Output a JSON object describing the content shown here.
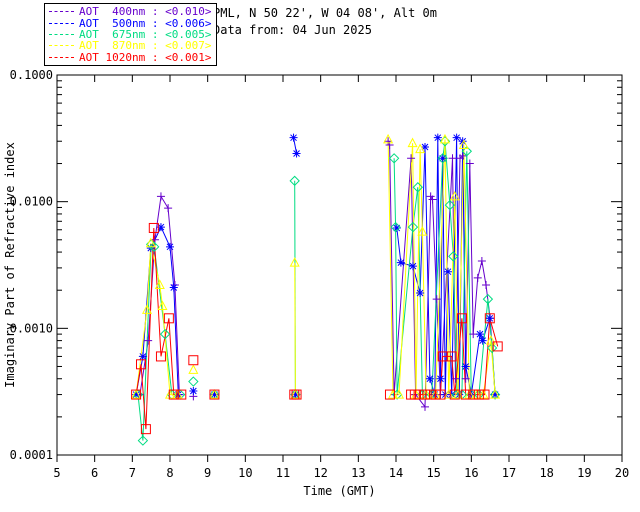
{
  "header": {
    "site_line": "PML, N 50 22', W 04 08', Alt 0m",
    "date_line": "Data from: 04 Jun 2025"
  },
  "legend": {
    "entries": [
      {
        "label": "AOT  400nm : <0.010>",
        "color": "#6600CC"
      },
      {
        "label": "AOT  500nm : <0.006>",
        "color": "#0000FF"
      },
      {
        "label": "AOT  675nm : <0.005>",
        "color": "#00DC82"
      },
      {
        "label": "AOT  870nm : <0.007>",
        "color": "#FFFF00"
      },
      {
        "label": "AOT 1020nm : <0.001>",
        "color": "#FF0000"
      }
    ]
  },
  "chart_data": {
    "type": "line",
    "title": "",
    "xlabel": "Time (GMT)",
    "ylabel": "Imaginary Part of Refractive index",
    "x_scale": "linear",
    "y_scale": "log",
    "xlim": [
      5,
      20
    ],
    "ylim": [
      0.0001,
      0.1
    ],
    "grid": false,
    "legend_position": "top-left-outside",
    "x_ticks": [
      5,
      6,
      7,
      8,
      9,
      10,
      11,
      12,
      13,
      14,
      15,
      16,
      17,
      18,
      19,
      20
    ],
    "y_ticks": [
      {
        "value": 0.1,
        "label": "0.1000"
      },
      {
        "value": 0.01,
        "label": "0.0100"
      },
      {
        "value": 0.001,
        "label": "0.0010"
      },
      {
        "value": 0.0001,
        "label": "0.0001"
      }
    ],
    "axis_color": "#000000",
    "background_color": "#FFFFFF",
    "series": [
      {
        "name": "AOT 400nm",
        "wavelength_nm": 400,
        "marker": "plus",
        "color": "#6600CC",
        "segments": [
          [
            [
              7.2,
              0.0003
            ],
            [
              7.42,
              0.0008
            ],
            [
              7.6,
              0.005
            ],
            [
              7.76,
              0.011
            ],
            [
              7.95,
              0.0089
            ],
            [
              8.13,
              0.0022
            ],
            [
              8.25,
              0.0003
            ]
          ],
          [
            [
              8.62,
              0.00029
            ]
          ],
          [
            [
              9.18,
              0.0003
            ]
          ],
          [
            [
              11.32,
              0.0003
            ]
          ],
          [
            [
              13.79,
              0.03
            ],
            [
              13.83,
              0.028
            ],
            [
              13.95,
              0.0003
            ],
            [
              14.4,
              0.022
            ],
            [
              14.52,
              0.0003
            ],
            [
              14.77,
              0.00024
            ],
            [
              14.92,
              0.011
            ],
            [
              14.97,
              0.0104
            ],
            [
              15.08,
              0.0017
            ],
            [
              15.18,
              0.0003
            ],
            [
              15.5,
              0.022
            ],
            [
              15.58,
              0.0004
            ],
            [
              15.7,
              0.022
            ],
            [
              15.78,
              0.023
            ],
            [
              15.85,
              0.0004
            ],
            [
              15.96,
              0.02
            ],
            [
              16.05,
              0.0009
            ],
            [
              16.17,
              0.0025
            ],
            [
              16.28,
              0.0034
            ],
            [
              16.39,
              0.0022
            ],
            [
              16.5,
              0.0012
            ],
            [
              16.63,
              0.0003
            ]
          ]
        ]
      },
      {
        "name": "AOT 500nm",
        "wavelength_nm": 500,
        "marker": "asterisk",
        "color": "#0000FF",
        "segments": [
          [
            [
              7.1,
              0.0003
            ],
            [
              7.28,
              0.0006
            ],
            [
              7.49,
              0.0043
            ],
            [
              7.76,
              0.0063
            ],
            [
              8.0,
              0.0044
            ],
            [
              8.1,
              0.0021
            ],
            [
              8.22,
              0.0003
            ]
          ],
          [
            [
              8.62,
              0.00032
            ]
          ],
          [
            [
              9.18,
              0.0003
            ]
          ],
          [
            [
              11.28,
              0.032
            ],
            [
              11.36,
              0.024
            ]
          ],
          [
            [
              11.34,
              0.0003
            ]
          ],
          [
            [
              14.02,
              0.0062
            ],
            [
              14.13,
              0.0033
            ],
            [
              14.45,
              0.0031
            ],
            [
              14.64,
              0.0019
            ],
            [
              14.77,
              0.027
            ],
            [
              14.9,
              0.0004
            ],
            [
              15.03,
              0.0003
            ],
            [
              15.11,
              0.032
            ],
            [
              15.18,
              0.0004
            ],
            [
              15.24,
              0.022
            ],
            [
              15.31,
              0.0003
            ],
            [
              15.38,
              0.0028
            ],
            [
              15.48,
              0.0003
            ],
            [
              15.61,
              0.032
            ],
            [
              15.68,
              0.0003
            ],
            [
              15.77,
              0.03
            ],
            [
              15.85,
              0.0005
            ],
            [
              16.0,
              0.0003
            ],
            [
              16.23,
              0.0009
            ],
            [
              16.3,
              0.0008
            ],
            [
              16.49,
              0.0012
            ],
            [
              16.63,
              0.0003
            ]
          ]
        ]
      },
      {
        "name": "AOT 675nm",
        "wavelength_nm": 675,
        "marker": "diamond",
        "color": "#00DC82",
        "segments": [
          [
            [
              7.15,
              0.0003
            ],
            [
              7.28,
              0.00013
            ],
            [
              7.5,
              0.0046
            ],
            [
              7.58,
              0.0044
            ],
            [
              7.87,
              0.0009
            ],
            [
              8.05,
              0.0003
            ],
            [
              8.27,
              0.0003
            ]
          ],
          [
            [
              8.62,
              0.00038
            ]
          ],
          [
            [
              9.18,
              0.0003
            ]
          ],
          [
            [
              11.31,
              0.0146
            ],
            [
              11.33,
              0.0003
            ]
          ],
          [
            [
              13.95,
              0.022
            ],
            [
              13.99,
              0.0063
            ],
            [
              14.03,
              0.0003
            ],
            [
              14.45,
              0.0063
            ],
            [
              14.58,
              0.013
            ],
            [
              14.7,
              0.0003
            ],
            [
              14.95,
              0.0003
            ],
            [
              15.24,
              0.022
            ],
            [
              15.3,
              0.03
            ],
            [
              15.43,
              0.0094
            ],
            [
              15.52,
              0.0037
            ],
            [
              15.62,
              0.0003
            ],
            [
              15.75,
              0.0003
            ],
            [
              15.88,
              0.025
            ],
            [
              16.0,
              0.0003
            ],
            [
              16.2,
              0.0003
            ],
            [
              16.44,
              0.0017
            ],
            [
              16.55,
              0.0007
            ],
            [
              16.63,
              0.0003
            ]
          ]
        ]
      },
      {
        "name": "AOT 870nm",
        "wavelength_nm": 870,
        "marker": "triangle",
        "color": "#FFFF00",
        "segments": [
          [
            [
              7.1,
              0.0003
            ],
            [
              7.39,
              0.0014
            ],
            [
              7.49,
              0.0047
            ],
            [
              7.73,
              0.0022
            ],
            [
              7.8,
              0.0015
            ],
            [
              8.0,
              0.0003
            ],
            [
              8.2,
              0.0003
            ]
          ],
          [
            [
              8.62,
              0.00047
            ]
          ],
          [
            [
              9.18,
              0.0003
            ]
          ],
          [
            [
              11.31,
              0.0033
            ],
            [
              11.33,
              0.0003
            ]
          ],
          [
            [
              13.79,
              0.031
            ],
            [
              13.92,
              0.0003
            ],
            [
              14.08,
              0.0003
            ],
            [
              14.44,
              0.029
            ],
            [
              14.53,
              0.0003
            ],
            [
              14.64,
              0.026
            ],
            [
              14.7,
              0.0058
            ],
            [
              14.8,
              0.0003
            ],
            [
              15.05,
              0.0003
            ],
            [
              15.3,
              0.031
            ],
            [
              15.4,
              0.0003
            ],
            [
              15.56,
              0.011
            ],
            [
              15.65,
              0.0003
            ],
            [
              15.8,
              0.028
            ],
            [
              15.95,
              0.0003
            ],
            [
              16.15,
              0.0003
            ],
            [
              16.32,
              0.0003
            ],
            [
              16.52,
              0.0008
            ],
            [
              16.63,
              0.0003
            ]
          ]
        ]
      },
      {
        "name": "AOT 1020nm",
        "wavelength_nm": 1020,
        "marker": "square",
        "color": "#FF0000",
        "segments": [
          [
            [
              7.1,
              0.0003
            ],
            [
              7.23,
              0.00052
            ],
            [
              7.36,
              0.00016
            ],
            [
              7.57,
              0.0062
            ],
            [
              7.76,
              0.0006
            ],
            [
              7.97,
              0.0012
            ],
            [
              8.1,
              0.0003
            ],
            [
              8.3,
              0.0003
            ]
          ],
          [
            [
              8.62,
              0.00056
            ]
          ],
          [
            [
              9.18,
              0.0003
            ]
          ],
          [
            [
              11.3,
              0.0003
            ],
            [
              11.36,
              0.0003
            ]
          ],
          [
            [
              13.84,
              0.0003
            ]
          ],
          [
            [
              14.4,
              0.0003
            ],
            [
              14.5,
              0.0003
            ],
            [
              14.6,
              0.0003
            ],
            [
              14.77,
              0.0003
            ],
            [
              14.92,
              0.0003
            ],
            [
              15.05,
              0.0003
            ],
            [
              15.18,
              0.0003
            ],
            [
              15.24,
              0.0006
            ],
            [
              15.48,
              0.0006
            ],
            [
              15.56,
              0.0003
            ],
            [
              15.75,
              0.0012
            ],
            [
              15.85,
              0.0003
            ],
            [
              16.05,
              0.0003
            ],
            [
              16.2,
              0.0003
            ],
            [
              16.35,
              0.0003
            ],
            [
              16.49,
              0.0012
            ],
            [
              16.7,
              0.00072
            ]
          ]
        ]
      }
    ]
  }
}
